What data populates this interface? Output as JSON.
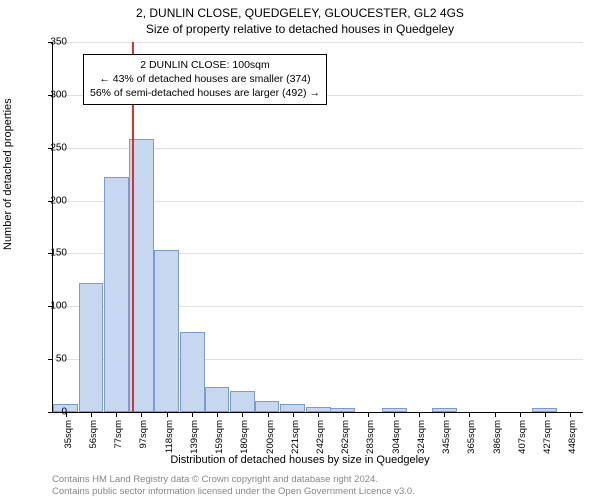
{
  "title1": "2, DUNLIN CLOSE, QUEDGELEY, GLOUCESTER, GL2 4GS",
  "title2": "Size of property relative to detached houses in Quedgeley",
  "ylabel": "Number of detached properties",
  "xlabel": "Distribution of detached houses by size in Quedgeley",
  "footer_line1": "Contains HM Land Registry data © Crown copyright and database right 2024.",
  "footer_line2": "Contains public sector information licensed under the Open Government Licence v3.0.",
  "annot_line1": "2 DUNLIN CLOSE: 100sqm",
  "annot_line2": "← 43% of detached houses are smaller (374)",
  "annot_line3": "56% of semi-detached houses are larger (492) →",
  "chart": {
    "type": "histogram",
    "ylim": [
      0,
      350
    ],
    "ytick_step": 50,
    "yticks": [
      0,
      50,
      100,
      150,
      200,
      250,
      300,
      350
    ],
    "bar_color": "#c7d7f0",
    "bar_border": "#7a9bd1",
    "grid_color": "#e0e0e0",
    "vline_color": "#d93030",
    "vline_x": 100,
    "x_start": 35,
    "x_label_step": 20.65,
    "x_labels": [
      "35sqm",
      "56sqm",
      "77sqm",
      "97sqm",
      "118sqm",
      "139sqm",
      "159sqm",
      "180sqm",
      "200sqm",
      "221sqm",
      "242sqm",
      "262sqm",
      "283sqm",
      "304sqm",
      "324sqm",
      "345sqm",
      "365sqm",
      "386sqm",
      "407sqm",
      "427sqm",
      "448sqm"
    ],
    "bars": [
      {
        "x": 35,
        "v": 8
      },
      {
        "x": 56,
        "v": 122
      },
      {
        "x": 77,
        "v": 222
      },
      {
        "x": 97,
        "v": 258
      },
      {
        "x": 118,
        "v": 153
      },
      {
        "x": 139,
        "v": 76
      },
      {
        "x": 159,
        "v": 24
      },
      {
        "x": 180,
        "v": 20
      },
      {
        "x": 200,
        "v": 10
      },
      {
        "x": 221,
        "v": 8
      },
      {
        "x": 242,
        "v": 5
      },
      {
        "x": 262,
        "v": 4
      },
      {
        "x": 283,
        "v": 0
      },
      {
        "x": 304,
        "v": 4
      },
      {
        "x": 324,
        "v": 0
      },
      {
        "x": 345,
        "v": 4
      },
      {
        "x": 365,
        "v": 0
      },
      {
        "x": 386,
        "v": 0
      },
      {
        "x": 407,
        "v": 0
      },
      {
        "x": 427,
        "v": 4
      },
      {
        "x": 448,
        "v": 0
      }
    ]
  }
}
